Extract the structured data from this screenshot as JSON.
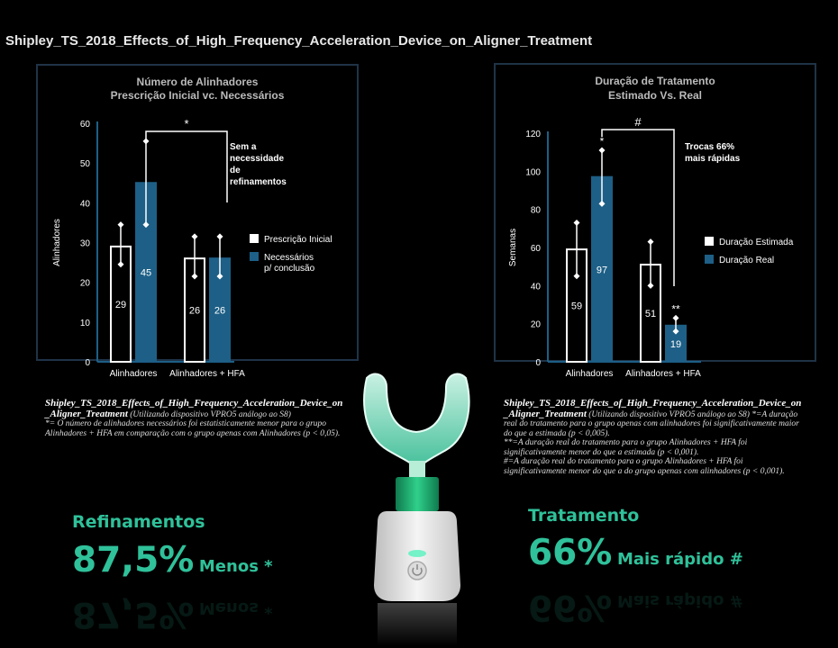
{
  "title": "Shipley_TS_2018_Effects_of_High_Frequency_Acceleration_Device_on_Aligner_Treatment",
  "left_chart": {
    "title_line1": "Número de Alinhadores",
    "title_line2": "Prescrição Inicial vc. Necessários",
    "annotation": [
      "Sem a",
      "necessidade",
      "de",
      "refinamentos"
    ],
    "bracket_symbol": "*"
  },
  "right_chart": {
    "title_line1": "Duração de Tratamento",
    "title_line2": "Estimado Vs. Real",
    "annotation": [
      "Trocas 66%",
      "mais rápidas"
    ],
    "bracket_symbol": "#"
  },
  "chart_data": [
    {
      "type": "bar",
      "title": "Número de Alinhadores Prescrição Inicial vc. Necessários",
      "categories": [
        "Alinhadores",
        "Alinhadores + HFA"
      ],
      "ylabel": "Alinhadores",
      "ylim": [
        0,
        60
      ],
      "yticks": [
        0,
        10,
        20,
        30,
        40,
        50,
        60
      ],
      "series": [
        {
          "name": "Prescrição Inicial",
          "color": "#ffffff",
          "values": [
            29,
            26
          ],
          "err_low": [
            24.5,
            21.5
          ],
          "err_high": [
            34.5,
            31.5
          ]
        },
        {
          "name": "Necessários p/ conclusão",
          "color": "#1d5f86",
          "values": [
            45,
            26
          ],
          "err_low": [
            34.5,
            21.5
          ],
          "err_high": [
            55.5,
            31.5
          ]
        }
      ],
      "legend": [
        "Prescrição Inicial",
        "Necessários p/ conclusão"
      ],
      "legend_placement": "right",
      "grid": false
    },
    {
      "type": "bar",
      "title": "Duração de Tratamento Estimado Vs. Real",
      "categories": [
        "Alinhadores",
        "Alinhadores + HFA"
      ],
      "ylabel": "Semanas",
      "ylim": [
        0,
        120
      ],
      "yticks": [
        0,
        20,
        40,
        60,
        80,
        100,
        120
      ],
      "series": [
        {
          "name": "Duração Estimada",
          "color": "#ffffff",
          "values": [
            59,
            51
          ],
          "err_low": [
            45,
            40
          ],
          "err_high": [
            73,
            63
          ]
        },
        {
          "name": "Duração Real",
          "color": "#1d5f86",
          "values": [
            97,
            19
          ],
          "err_low": [
            83,
            16
          ],
          "err_high": [
            111,
            23
          ]
        }
      ],
      "legend": [
        "Duração Estimada",
        "Duração Real"
      ],
      "legend_placement": "right",
      "grid": false
    }
  ],
  "captions": {
    "left_bold": "Shipley_TS_2018_Effects_of_High_Frequency_Acceleration_Device_on_Aligner_Treatment",
    "left_rest": " (Utilizando dispositivo VPRO5 análogo ao S8)",
    "left_note": "*= O número de alinhadores necessários foi estatisticamente menor para o grupo Alinhadores + HFA em comparação com o grupo apenas com Alinhadores (p < 0,05).",
    "right_bold": "Shipley_TS_2018_Effects_of_High_Frequency_Acceleration_Device_on_Aligner_Treatment",
    "right_rest": " (Utilizando dispositivo VPRO5 análogo ao S8) *=A duração real do tratamento para o grupo apenas com alinhadores foi significativamente maior do que a estimada (p < 0,005).",
    "right_note1": "**=A duração real do tratamento para o grupo Alinhadores + HFA foi significativamente menor do que a estimada (p < 0,001).",
    "right_note2": "#=A duração real do tratamento para o grupo Alinhadores + HFA foi significativamente menor do que a do grupo apenas com alinhadores (p < 0,001)."
  },
  "highlights": {
    "left_label": "Refinamentos",
    "left_value": "87,5%",
    "left_suffix": "Menos *",
    "right_label": "Tratamento",
    "right_value": "66%",
    "right_suffix": "Mais rápido #",
    "accent": "#2fc19a"
  }
}
